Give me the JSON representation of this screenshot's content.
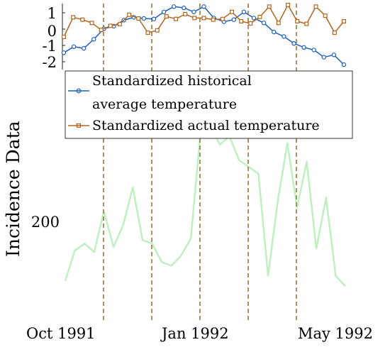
{
  "chart_data": {
    "type": "line",
    "ylabel": "Incidence Data",
    "x_tick_labels": [
      "Oct 1991",
      "Jan 1992",
      "May 1992"
    ],
    "y_tick_labels_main": [
      "200"
    ],
    "y_tick_labels_inset": [
      "1",
      "0",
      "-1",
      "-2"
    ],
    "legend": {
      "placement": "upper-left, below inset",
      "entries": [
        {
          "line1": "Standardized historical",
          "line2": "average temperature",
          "color": "#1f5fbf",
          "marker": "circle"
        },
        {
          "line1": "Standardized actual temperature",
          "line2": "",
          "color": "#b5651d",
          "marker": "square"
        }
      ]
    },
    "incidence_series": {
      "color": "#bff0bf",
      "values": [
        165,
        183,
        187,
        182,
        206,
        185,
        198,
        220,
        189,
        187,
        176,
        174,
        180,
        190,
        252,
        257,
        245,
        250,
        236,
        232,
        228,
        168,
        212,
        246,
        208,
        235,
        184,
        214,
        168,
        162
      ]
    },
    "inset": {
      "ylim": [
        -2.4,
        1.5
      ],
      "series": [
        {
          "name": "Standardized historical average temperature",
          "color": "#1f5fbf",
          "values": [
            -1.45,
            -1.08,
            -1.18,
            -0.62,
            0.02,
            0.18,
            0.55,
            0.72,
            0.65,
            0.62,
            1.05,
            1.38,
            1.3,
            1.05,
            1.38,
            0.68,
            0.45,
            0.58,
            1.05,
            0.68,
            0.38,
            -0.18,
            -0.45,
            -0.88,
            -1.12,
            -1.28,
            -1.72,
            -1.58,
            -2.18
          ]
        },
        {
          "name": "Standardized actual temperature",
          "color": "#b5651d",
          "values": [
            -0.48,
            0.72,
            0.58,
            0.38,
            -0.05,
            0.2,
            0.3,
            0.88,
            0.65,
            -0.22,
            -0.08,
            0.78,
            0.62,
            0.92,
            0.68,
            0.68,
            0.58,
            0.62,
            1.05,
            0.48,
            0.35,
            0.75,
            1.38,
            0.38,
            1.48,
            0.48,
            0.32,
            1.38,
            0.82,
            -0.22,
            0.48
          ]
        }
      ]
    },
    "events": {
      "color": "#a9834e",
      "count": 5
    }
  }
}
